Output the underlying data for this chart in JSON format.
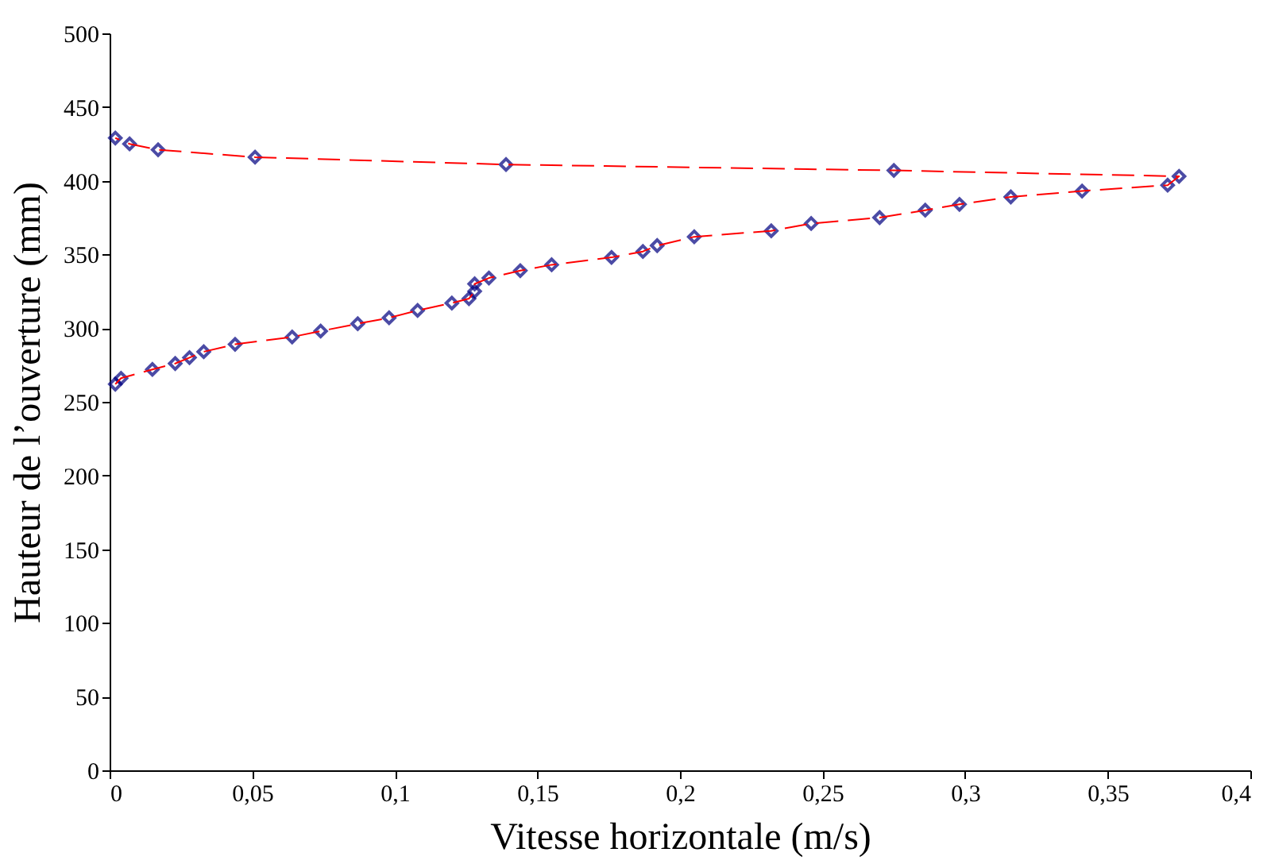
{
  "chart_data": {
    "type": "scatter",
    "xlabel": "Vitesse horizontale (m/s)",
    "ylabel": "Hauteur de l’ouverture (mm)",
    "xlim": [
      0,
      0.4
    ],
    "ylim": [
      0,
      500
    ],
    "xticks": [
      0,
      {
        "value": 0.05,
        "label": "0,05"
      },
      {
        "value": 0.1,
        "label": "0,1"
      },
      {
        "value": 0.15,
        "label": "0,15"
      },
      {
        "value": 0.2,
        "label": "0,2"
      },
      {
        "value": 0.25,
        "label": "0,25"
      },
      {
        "value": 0.3,
        "label": "0,3"
      },
      {
        "value": 0.35,
        "label": "0,35"
      },
      {
        "value": 0.4,
        "label": "0,4"
      }
    ],
    "yticks": [
      0,
      50,
      100,
      150,
      200,
      250,
      300,
      350,
      400,
      450,
      500
    ],
    "grid": false,
    "series": [
      {
        "color": "#000080",
        "marker": "diamond",
        "x": [
          0.002,
          0.004,
          0.015,
          0.023,
          0.028,
          0.033,
          0.044,
          0.064,
          0.074,
          0.087,
          0.098,
          0.108,
          0.12,
          0.126,
          0.128,
          0.128,
          0.133,
          0.144,
          0.155,
          0.176,
          0.187,
          0.192,
          0.205,
          0.232,
          0.246,
          0.27,
          0.286,
          0.298,
          0.316,
          0.341,
          0.371,
          0.375,
          0.275,
          0.139,
          0.051,
          0.017,
          0.007,
          0.002
        ],
        "values": [
          262,
          266,
          272,
          276,
          280,
          284,
          289,
          294,
          298,
          303,
          307,
          312,
          317,
          320,
          325,
          330,
          334,
          339,
          343,
          348,
          352,
          356,
          362,
          366,
          371,
          375,
          380,
          384,
          389,
          393,
          397,
          403,
          407,
          411,
          416,
          421,
          425,
          429
        ]
      },
      {
        "type": "line",
        "color": "#ff0000",
        "line_style": "dashed",
        "marker": "none",
        "x": [
          0.002,
          0.004,
          0.015,
          0.023,
          0.028,
          0.033,
          0.044,
          0.064,
          0.074,
          0.087,
          0.098,
          0.108,
          0.12,
          0.126,
          0.128,
          0.128,
          0.133,
          0.144,
          0.155,
          0.176,
          0.187,
          0.192,
          0.205,
          0.232,
          0.246,
          0.27,
          0.286,
          0.298,
          0.316,
          0.341,
          0.371,
          0.375,
          0.275,
          0.139,
          0.051,
          0.017,
          0.007,
          0.002
        ],
        "values": [
          262,
          266,
          272,
          276,
          280,
          284,
          289,
          294,
          298,
          303,
          307,
          312,
          317,
          320,
          325,
          330,
          334,
          339,
          343,
          348,
          352,
          356,
          362,
          366,
          371,
          375,
          380,
          384,
          389,
          393,
          397,
          403,
          407,
          411,
          416,
          421,
          425,
          429
        ]
      }
    ]
  }
}
